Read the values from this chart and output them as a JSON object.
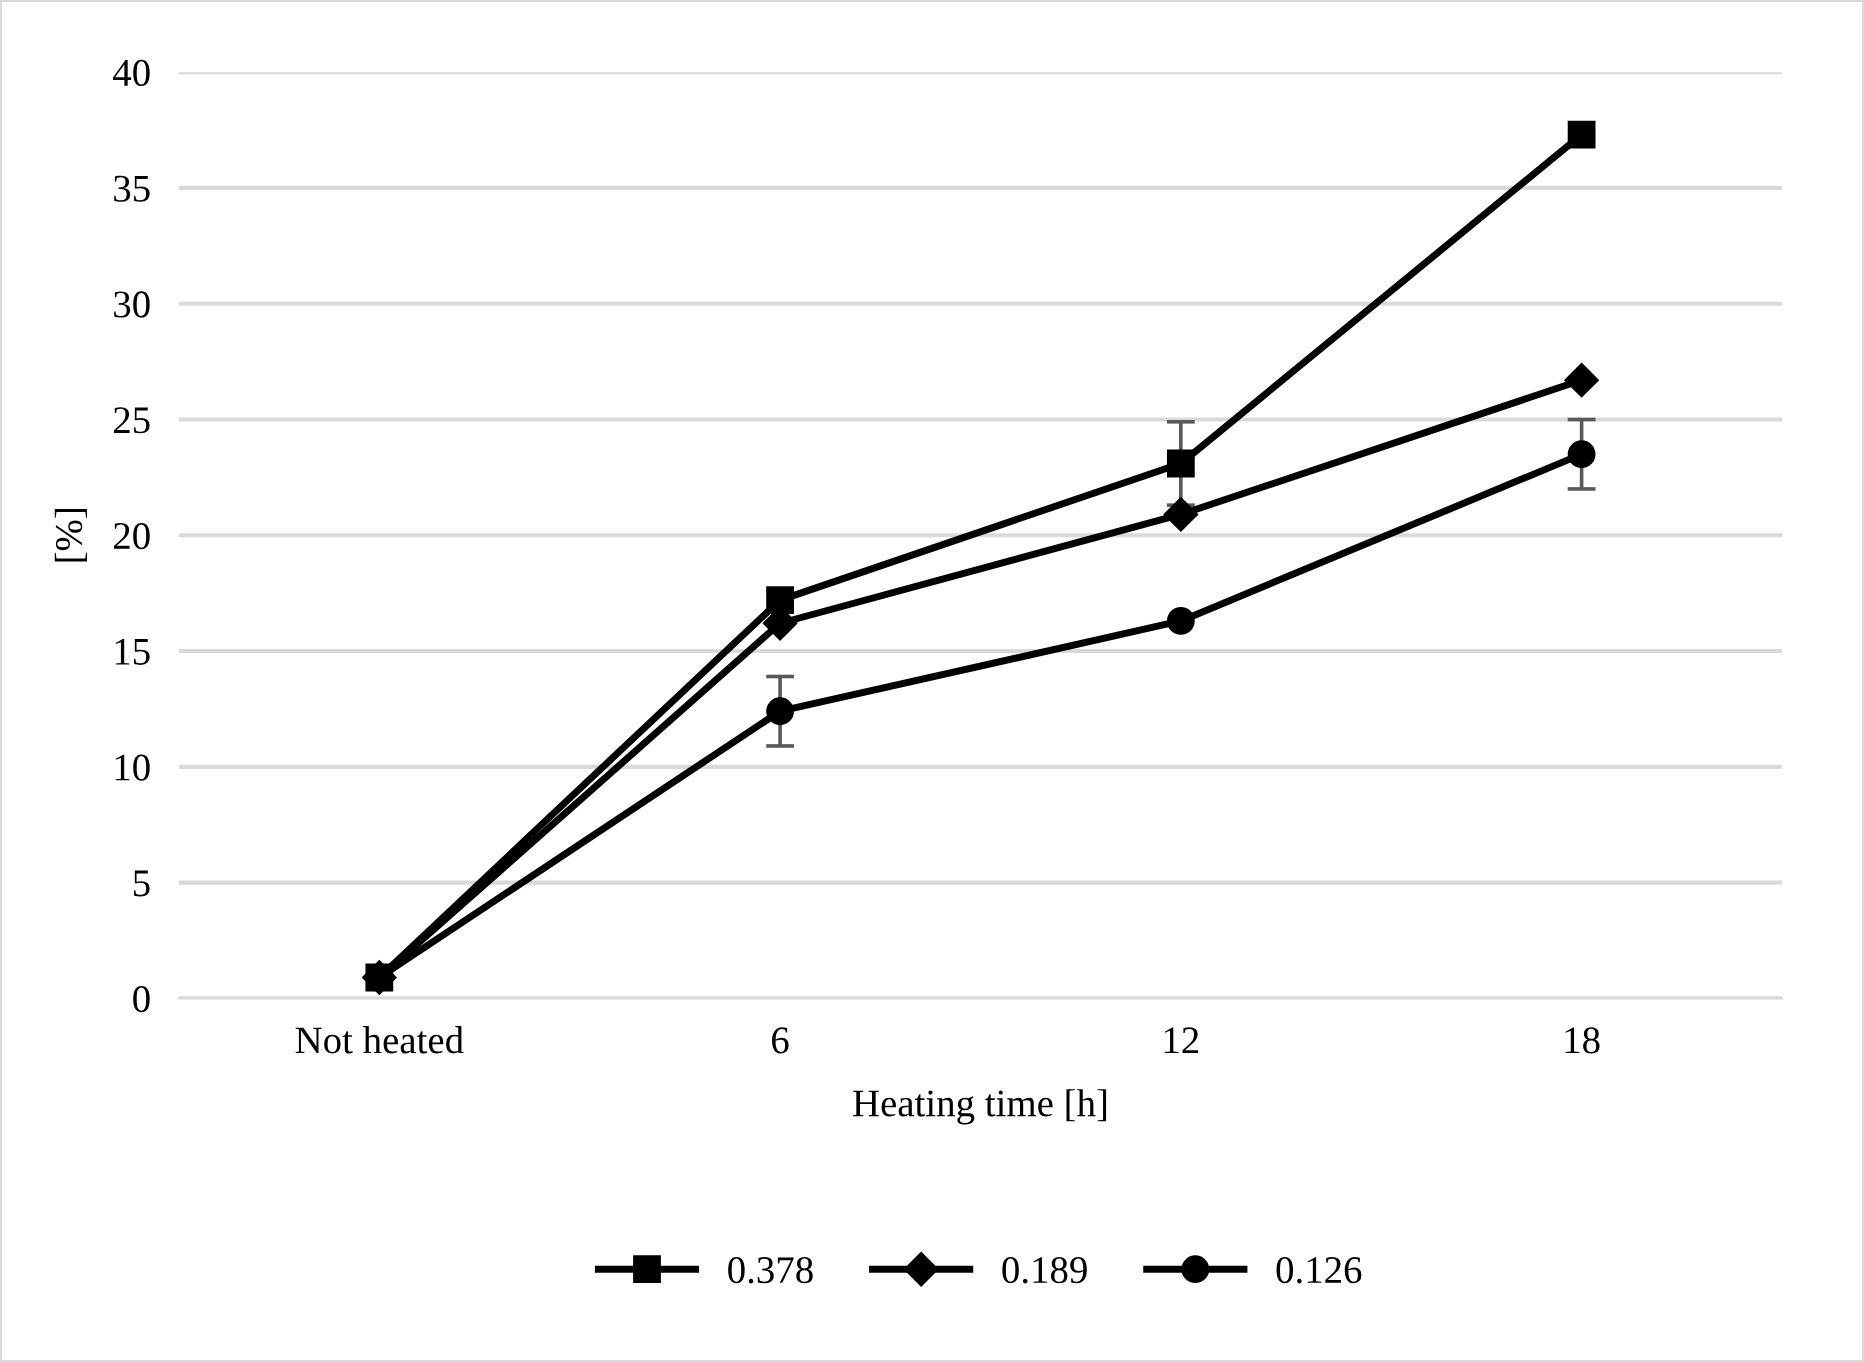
{
  "chart_data": {
    "type": "line",
    "xlabel": "Heating time [h]",
    "ylabel": "[%]",
    "categories": [
      "Not heated",
      "6",
      "12",
      "18"
    ],
    "ylim": [
      0,
      40
    ],
    "yticks": [
      0,
      5,
      10,
      15,
      20,
      25,
      30,
      35,
      40
    ],
    "grid": "y",
    "legend": "bottom",
    "line_style": "solid",
    "series": [
      {
        "name": "0.378",
        "color": "#000000",
        "marker": "square",
        "values": [
          0.9,
          17.2,
          23.1,
          37.3
        ],
        "errors": [
          null,
          null,
          1.8,
          null
        ]
      },
      {
        "name": "0.189",
        "color": "#000000",
        "marker": "diamond",
        "values": [
          0.9,
          16.2,
          20.9,
          26.7
        ],
        "errors": [
          null,
          null,
          null,
          null
        ]
      },
      {
        "name": "0.126",
        "color": "#000000",
        "marker": "circle",
        "values": [
          0.9,
          12.4,
          16.3,
          23.5
        ],
        "errors": [
          null,
          1.5,
          null,
          1.5
        ]
      }
    ]
  }
}
